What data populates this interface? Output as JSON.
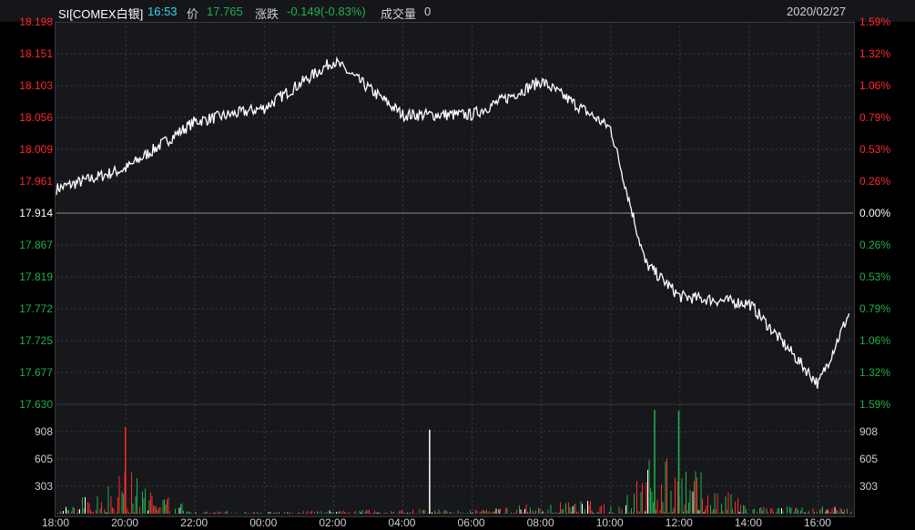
{
  "header": {
    "symbol": "SI[COMEX白银]",
    "time": "16:53",
    "price_label": "价",
    "price": "17.765",
    "change_label": "涨跌",
    "change": "-0.149(-0.83%)",
    "volume_label": "成交量",
    "volume": "0",
    "date": "2020/02/27"
  },
  "colors": {
    "up": "#ff2a2a",
    "down": "#22b14c",
    "flat": "#ffffff",
    "cyan": "#36d6e7",
    "line": "#ffffff"
  },
  "price_axis": {
    "left": [
      "18.198",
      "18.151",
      "18.103",
      "18.056",
      "18.009",
      "17.961",
      "17.914",
      "17.867",
      "17.819",
      "17.772",
      "17.725",
      "17.677",
      "17.630"
    ],
    "right": [
      "1.59%",
      "1.32%",
      "1.06%",
      "0.79%",
      "0.53%",
      "0.26%",
      "0.00%",
      "0.26%",
      "0.53%",
      "0.79%",
      "1.06%",
      "1.32%",
      "1.59%"
    ]
  },
  "volume_axis": {
    "left": [
      "908",
      "605",
      "303"
    ],
    "right": [
      "908",
      "605",
      "303"
    ]
  },
  "time_axis": [
    "18:00",
    "20:00",
    "22:00",
    "00:00",
    "02:00",
    "04:00",
    "06:00",
    "08:00",
    "10:00",
    "12:00",
    "14:00",
    "16:00"
  ],
  "chart_data": {
    "type": "line",
    "title": "",
    "xlabel": "",
    "ylabel": "",
    "ylim": [
      17.63,
      18.198
    ],
    "reference_price": 17.914,
    "x": [
      "18:00",
      "20:00",
      "22:00",
      "00:00",
      "02:00",
      "04:00",
      "06:00",
      "08:00",
      "10:00",
      "11:00",
      "12:00",
      "14:00",
      "16:00",
      "16:53"
    ],
    "series": [
      {
        "values": [
          17.95,
          17.98,
          18.05,
          18.07,
          18.14,
          18.06,
          18.06,
          18.11,
          18.04,
          17.84,
          17.79,
          17.78,
          17.66,
          17.765
        ]
      }
    ],
    "volume": {
      "ylim": [
        0,
        1211
      ],
      "x": [
        "18:00",
        "20:00",
        "22:00",
        "00:00",
        "02:00",
        "04:00",
        "06:00",
        "08:00",
        "10:00",
        "11:00",
        "12:00",
        "14:00",
        "16:00"
      ],
      "values": [
        20,
        960,
        60,
        40,
        70,
        90,
        80,
        220,
        300,
        1180,
        1150,
        160,
        140
      ],
      "notable": {
        "04:46": 930
      }
    }
  }
}
